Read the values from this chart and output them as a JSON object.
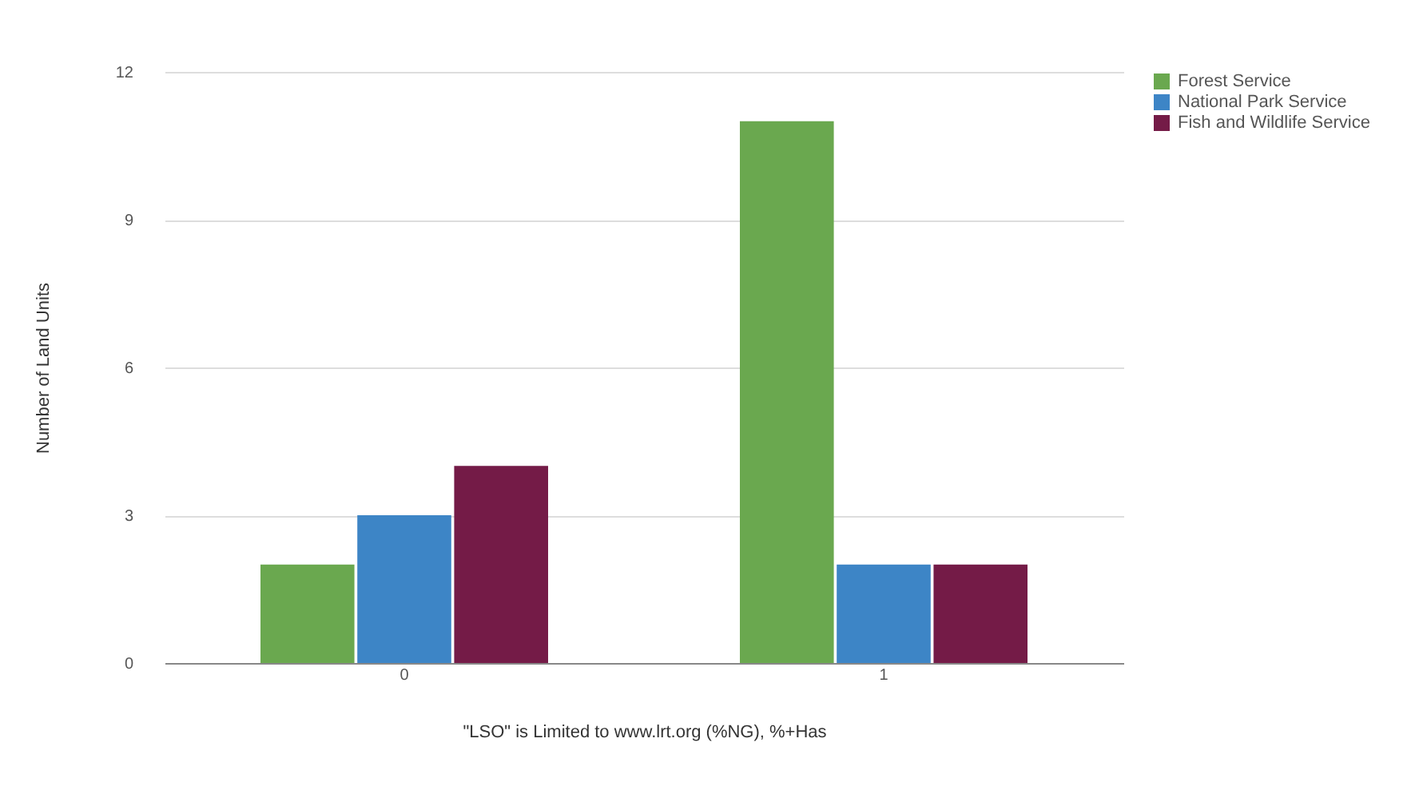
{
  "chart_data": {
    "type": "bar",
    "xlabel": "\"LSO\" is Limited to www.lrt.org (%NG), %+Has",
    "ylabel": "Number of Land Units",
    "categories": [
      "0",
      "1"
    ],
    "series": [
      {
        "name": "Forest Service",
        "color": "#6aa84f",
        "values": [
          2,
          11
        ]
      },
      {
        "name": "National Park Service",
        "color": "#3d85c6",
        "values": [
          3,
          2
        ]
      },
      {
        "name": "Fish and Wildlife Service",
        "color": "#741b47",
        "values": [
          4,
          2
        ]
      }
    ],
    "ylim": [
      0,
      12
    ],
    "yticks": [
      0,
      3,
      6,
      9,
      12
    ],
    "grid": "y",
    "legend": "top right"
  }
}
